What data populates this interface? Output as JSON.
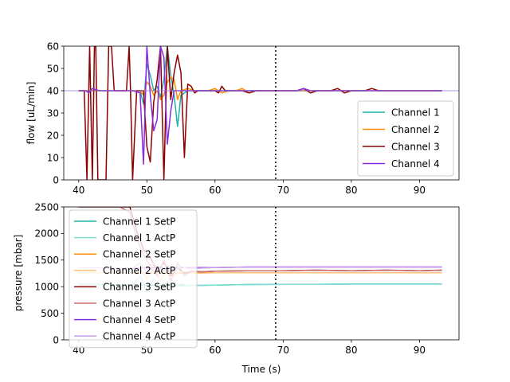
{
  "chart_data": [
    {
      "type": "line",
      "title": "",
      "xlabel": "",
      "ylabel": "flow [uL/min]",
      "xlim": [
        37.8,
        95.8
      ],
      "ylim": [
        0,
        60
      ],
      "xticks": [
        "40",
        "50",
        "60",
        "70",
        "80",
        "90"
      ],
      "xtick_values": [
        40,
        50,
        60,
        70,
        80,
        90
      ],
      "yticks": [
        "0",
        "10",
        "20",
        "30",
        "40",
        "50",
        "60"
      ],
      "ytick_values": [
        0,
        10,
        20,
        30,
        40,
        50,
        60
      ],
      "reference_lines": {
        "vertical_x": 68.9,
        "horizontal_y": 40
      },
      "legend": {
        "placement": "lower-right"
      },
      "series": [
        {
          "name": "Channel 1",
          "color": "#20b2aa",
          "x": [
            40,
            41,
            42,
            43,
            44,
            45,
            46,
            47,
            48,
            49,
            49.5,
            50,
            50.5,
            51,
            51.5,
            52,
            52.5,
            53,
            53.5,
            54,
            54.5,
            55,
            56,
            57,
            58,
            59,
            60,
            62,
            64,
            66,
            68,
            70,
            72,
            74,
            76,
            78,
            80,
            82,
            84,
            86,
            88,
            90,
            92,
            93.3
          ],
          "y": [
            40,
            40,
            40,
            40,
            40,
            40,
            40,
            40,
            40,
            40,
            34,
            52,
            47,
            40,
            42,
            37,
            45,
            60,
            47,
            38,
            24,
            38,
            40,
            40,
            40,
            40,
            40,
            40,
            40,
            40,
            40,
            40,
            40,
            40,
            40,
            40,
            40,
            40,
            40,
            40,
            40,
            40,
            40,
            40
          ]
        },
        {
          "name": "Channel 2",
          "color": "#ff8c00",
          "x": [
            40,
            42,
            44,
            46,
            48,
            49,
            49.5,
            50,
            50.5,
            51,
            51.5,
            52,
            52.5,
            53,
            53.5,
            54,
            54.5,
            55,
            56,
            57,
            58,
            59,
            60,
            61,
            62,
            63,
            64,
            65,
            66,
            68,
            70,
            72,
            74,
            76,
            78,
            80,
            82,
            84,
            86,
            88,
            90,
            92,
            93.3
          ],
          "y": [
            40,
            40,
            40,
            40,
            40,
            40,
            38,
            44,
            42,
            38,
            40,
            36,
            38,
            44,
            46,
            45,
            36,
            40,
            41,
            40,
            40,
            40,
            41,
            39,
            40,
            40,
            41,
            39,
            40,
            40,
            40,
            40,
            40,
            40,
            40,
            40,
            40,
            40,
            40,
            40,
            40,
            40,
            40
          ]
        },
        {
          "name": "Channel 3",
          "color": "#8b0000",
          "x": [
            40,
            40.8,
            41.2,
            41.6,
            42.0,
            42.3,
            42.5,
            42.8,
            44.0,
            44.4,
            44.8,
            45.2,
            46.0,
            47.0,
            47.4,
            47.6,
            47.9,
            48.5,
            49.0,
            49.5,
            50.0,
            50.5,
            51.0,
            51.5,
            52.0,
            52.5,
            53.0,
            53.5,
            54.0,
            54.5,
            55.0,
            55.5,
            56.0,
            56.5,
            57.0,
            57.5,
            58.0,
            58.5,
            59.0,
            59.5,
            60.0,
            60.5,
            61.0,
            61.5,
            62.0,
            63.0,
            64.0,
            65.0,
            66.0,
            67.0,
            68.0,
            69.0,
            70.0,
            71.0,
            72.0,
            73.0,
            74.0,
            75.0,
            76.0,
            77.0,
            78.0,
            79.0,
            80.0,
            81.0,
            82.0,
            83.0,
            84.0,
            85.0,
            86.0,
            87.0,
            88.0,
            89.0,
            90.0,
            91.0,
            92.0,
            93.3
          ],
          "y": [
            40,
            40,
            0,
            60,
            0,
            60,
            60,
            0,
            0,
            60,
            60,
            40,
            40,
            40,
            60,
            40,
            0,
            40,
            40,
            40,
            15,
            8,
            35,
            45,
            60,
            0,
            60,
            36,
            48,
            56,
            48,
            10,
            43,
            42,
            39,
            40,
            40,
            40,
            40,
            40,
            40,
            39,
            42,
            40,
            40,
            40,
            40,
            39,
            40,
            40,
            40,
            40,
            40,
            40,
            40,
            41,
            39,
            40,
            40,
            40,
            41,
            39,
            40,
            40,
            40,
            41,
            40,
            40,
            40,
            40,
            40,
            40,
            40,
            40,
            40,
            40
          ]
        },
        {
          "name": "Channel 4",
          "color": "#8a2be2",
          "x": [
            40,
            41,
            41.5,
            42,
            43,
            44,
            45,
            46,
            47,
            48,
            49,
            49.5,
            50,
            50.5,
            51,
            51.5,
            52,
            52.5,
            53,
            53.5,
            54,
            54.5,
            55,
            56,
            57,
            58,
            59,
            60,
            61,
            62,
            63,
            64,
            65,
            66,
            67,
            68,
            69,
            70,
            71,
            72,
            73,
            74,
            75,
            76,
            77,
            78,
            79,
            80,
            81,
            82,
            83,
            84,
            85,
            86,
            87,
            88,
            89,
            90,
            91,
            92,
            93.3
          ],
          "y": [
            40,
            40,
            39,
            41,
            40,
            40,
            40,
            40,
            40,
            40,
            39,
            7,
            60,
            38,
            22,
            27,
            60,
            55,
            16,
            31,
            40,
            40,
            40,
            40,
            40,
            40,
            40,
            40,
            40,
            40,
            40,
            40,
            40,
            40,
            40,
            40,
            40,
            40,
            40,
            40,
            41,
            40,
            40,
            40,
            40,
            40,
            40,
            40,
            40,
            40,
            40,
            40,
            40,
            40,
            40,
            40,
            40,
            40,
            40,
            40,
            40
          ]
        }
      ]
    },
    {
      "type": "line",
      "title": "",
      "xlabel": "Time (s)",
      "ylabel": "pressure [mbar]",
      "xlim": [
        37.8,
        95.8
      ],
      "ylim": [
        0,
        2500
      ],
      "xticks": [
        "40",
        "50",
        "60",
        "70",
        "80",
        "90"
      ],
      "xtick_values": [
        40,
        50,
        60,
        70,
        80,
        90
      ],
      "yticks": [
        "0",
        "500",
        "1000",
        "1500",
        "2000",
        "2500"
      ],
      "ytick_values": [
        0,
        500,
        1000,
        1500,
        2000,
        2500
      ],
      "reference_lines": {
        "vertical_x": 68.9
      },
      "legend": {
        "placement": "upper-left"
      },
      "series": [
        {
          "name": "Channel 1 SetP",
          "color": "#20b2aa",
          "x": [
            40,
            44,
            48,
            50,
            52,
            54,
            56,
            60,
            65,
            70,
            75,
            80,
            85,
            90,
            93.3
          ],
          "y": [
            1040,
            1040,
            1040,
            1030,
            1020,
            1020,
            1020,
            1030,
            1040,
            1045,
            1045,
            1050,
            1050,
            1050,
            1050
          ]
        },
        {
          "name": "Channel 1 ActP",
          "color": "#7fdbd4",
          "x": [
            40,
            44,
            48,
            49,
            50,
            51,
            52,
            53,
            54,
            55,
            56,
            60,
            65,
            70,
            75,
            80,
            85,
            90,
            93.3
          ],
          "y": [
            1040,
            1040,
            1040,
            1200,
            900,
            1150,
            950,
            1100,
            1000,
            1050,
            1020,
            1030,
            1040,
            1045,
            1045,
            1050,
            1050,
            1050,
            1050
          ]
        },
        {
          "name": "Channel 2 SetP",
          "color": "#ff8c00",
          "x": [
            40,
            44,
            48,
            50,
            52,
            54,
            56,
            60,
            65,
            70,
            75,
            80,
            85,
            90,
            93.3
          ],
          "y": [
            1260,
            1260,
            1260,
            1260,
            1250,
            1250,
            1260,
            1260,
            1260,
            1260,
            1260,
            1260,
            1260,
            1260,
            1260
          ]
        },
        {
          "name": "Channel 2 ActP",
          "color": "#ffc27a",
          "x": [
            40,
            44,
            48,
            49,
            50,
            51,
            52,
            53,
            54,
            55,
            56,
            60,
            65,
            70,
            75,
            80,
            85,
            90,
            93.3
          ],
          "y": [
            1260,
            1260,
            1260,
            1350,
            1150,
            1400,
            1100,
            1350,
            1200,
            1300,
            1250,
            1260,
            1260,
            1260,
            1260,
            1260,
            1260,
            1260,
            1260
          ]
        },
        {
          "name": "Channel 3 SetP",
          "color": "#8b0000",
          "x": [
            40,
            44,
            46,
            47.5,
            48.5,
            49.5,
            50.5,
            51.5,
            52.5,
            53.5,
            54.5,
            55.5,
            56.5,
            58,
            60,
            65,
            70,
            75,
            80,
            85,
            90,
            93.3
          ],
          "y": [
            2500,
            2500,
            2500,
            2500,
            2050,
            1700,
            1550,
            1300,
            1450,
            1200,
            1350,
            1250,
            1290,
            1280,
            1290,
            1300,
            1300,
            1310,
            1300,
            1310,
            1300,
            1310
          ]
        },
        {
          "name": "Channel 3 ActP",
          "color": "#c87070",
          "x": [
            40,
            44,
            46,
            47.5,
            48.5,
            49.5,
            50.5,
            51.5,
            52.5,
            53.5,
            54.5,
            55.5,
            56.5,
            58,
            60,
            65,
            70,
            75,
            80,
            85,
            90,
            93.3
          ],
          "y": [
            2500,
            2500,
            2500,
            2400,
            1900,
            1600,
            1400,
            1200,
            1500,
            1100,
            1450,
            1200,
            1300,
            1280,
            1290,
            1300,
            1300,
            1310,
            1300,
            1310,
            1300,
            1310
          ]
        },
        {
          "name": "Channel 4 SetP",
          "color": "#8a2be2",
          "x": [
            40,
            44,
            48,
            50,
            52,
            54,
            56,
            60,
            65,
            70,
            75,
            80,
            85,
            90,
            93.3
          ],
          "y": [
            1350,
            1350,
            1350,
            1350,
            1360,
            1360,
            1360,
            1360,
            1370,
            1370,
            1370,
            1370,
            1370,
            1370,
            1370
          ]
        },
        {
          "name": "Channel 4 ActP",
          "color": "#c89be8",
          "x": [
            40,
            44,
            48,
            49,
            50,
            51,
            52,
            53,
            54,
            55,
            56,
            60,
            65,
            70,
            75,
            80,
            85,
            90,
            93.3
          ],
          "y": [
            1350,
            1350,
            1350,
            1450,
            1250,
            1450,
            1250,
            1400,
            1300,
            1380,
            1340,
            1360,
            1370,
            1370,
            1370,
            1370,
            1370,
            1370,
            1370
          ]
        }
      ]
    }
  ]
}
